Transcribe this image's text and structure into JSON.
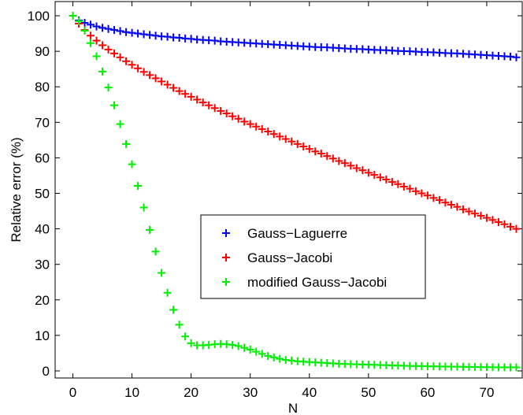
{
  "chart_data": {
    "type": "scatter",
    "title": "",
    "xlabel": "N",
    "ylabel": "Relative error (%)",
    "xlim": [
      -3,
      76
    ],
    "ylim": [
      -2,
      104
    ],
    "xticks": [
      0,
      10,
      20,
      30,
      40,
      50,
      60,
      70
    ],
    "yticks": [
      0,
      10,
      20,
      30,
      40,
      50,
      60,
      70,
      80,
      90,
      100
    ],
    "marker": "plus",
    "grid": false,
    "legend_position": "center-right",
    "series": [
      {
        "name": "Gauss−Laguerre",
        "color": "#0000ff",
        "x": [
          0,
          1,
          2,
          3,
          4,
          5,
          6,
          7,
          8,
          9,
          10,
          11,
          12,
          13,
          14,
          15,
          16,
          17,
          18,
          19,
          20,
          21,
          22,
          23,
          24,
          25,
          26,
          27,
          28,
          29,
          30,
          31,
          32,
          33,
          34,
          35,
          36,
          37,
          38,
          39,
          40,
          41,
          42,
          43,
          44,
          45,
          46,
          47,
          48,
          49,
          50,
          51,
          52,
          53,
          54,
          55,
          56,
          57,
          58,
          59,
          60,
          61,
          62,
          63,
          64,
          65,
          66,
          67,
          68,
          69,
          70,
          71,
          72,
          73,
          74,
          75
        ],
        "y": [
          100.0,
          98.7,
          98.0,
          97.5,
          97.0,
          96.6,
          96.3,
          96.0,
          95.7,
          95.4,
          95.2,
          95.0,
          94.8,
          94.6,
          94.4,
          94.2,
          94.1,
          93.9,
          93.8,
          93.6,
          93.5,
          93.3,
          93.2,
          93.1,
          93.0,
          92.8,
          92.7,
          92.6,
          92.5,
          92.4,
          92.3,
          92.2,
          92.1,
          92.0,
          91.9,
          91.8,
          91.7,
          91.6,
          91.5,
          91.4,
          91.3,
          91.2,
          91.15,
          91.1,
          91.0,
          90.9,
          90.8,
          90.7,
          90.65,
          90.6,
          90.5,
          90.4,
          90.35,
          90.3,
          90.2,
          90.1,
          90.05,
          90.0,
          89.9,
          89.8,
          89.75,
          89.7,
          89.6,
          89.5,
          89.45,
          89.4,
          89.3,
          89.2,
          89.1,
          89.0,
          88.9,
          88.8,
          88.7,
          88.6,
          88.5,
          88.3
        ]
      },
      {
        "name": "Gauss−Jacobi",
        "color": "#ff0000",
        "x": [
          0,
          1,
          2,
          3,
          4,
          5,
          6,
          7,
          8,
          9,
          10,
          11,
          12,
          13,
          14,
          15,
          16,
          17,
          18,
          19,
          20,
          21,
          22,
          23,
          24,
          25,
          26,
          27,
          28,
          29,
          30,
          31,
          32,
          33,
          34,
          35,
          36,
          37,
          38,
          39,
          40,
          41,
          42,
          43,
          44,
          45,
          46,
          47,
          48,
          49,
          50,
          51,
          52,
          53,
          54,
          55,
          56,
          57,
          58,
          59,
          60,
          61,
          62,
          63,
          64,
          65,
          66,
          67,
          68,
          69,
          70,
          71,
          72,
          73,
          74,
          75
        ],
        "y": [
          100.0,
          97.8,
          96.0,
          94.4,
          93.0,
          91.7,
          90.5,
          89.4,
          88.3,
          87.2,
          86.2,
          85.2,
          84.2,
          83.3,
          82.4,
          81.5,
          80.6,
          79.7,
          78.8,
          78.0,
          77.2,
          76.4,
          75.6,
          74.8,
          74.0,
          73.2,
          72.5,
          71.7,
          71.0,
          70.2,
          69.5,
          68.8,
          68.1,
          67.4,
          66.7,
          66.0,
          65.3,
          64.6,
          63.9,
          63.2,
          62.5,
          61.8,
          61.2,
          60.5,
          59.8,
          59.1,
          58.5,
          57.8,
          57.1,
          56.5,
          55.8,
          55.2,
          54.5,
          53.9,
          53.2,
          52.6,
          51.9,
          51.3,
          50.6,
          50.0,
          49.4,
          48.7,
          48.1,
          47.4,
          46.8,
          46.2,
          45.5,
          44.9,
          44.3,
          43.7,
          43.1,
          42.5,
          41.9,
          41.3,
          40.6,
          40.0
        ]
      },
      {
        "name": "modified Gauss−Jacobi",
        "color": "#00ee00",
        "x": [
          0,
          1,
          2,
          3,
          4,
          5,
          6,
          7,
          8,
          9,
          10,
          11,
          12,
          13,
          14,
          15,
          16,
          17,
          18,
          19,
          20,
          21,
          22,
          23,
          24,
          25,
          26,
          27,
          28,
          29,
          30,
          31,
          32,
          33,
          34,
          35,
          36,
          37,
          38,
          39,
          40,
          41,
          42,
          43,
          44,
          45,
          46,
          47,
          48,
          49,
          50,
          51,
          52,
          53,
          54,
          55,
          56,
          57,
          58,
          59,
          60,
          61,
          62,
          63,
          64,
          65,
          66,
          67,
          68,
          69,
          70,
          71,
          72,
          73,
          74,
          75
        ],
        "y": [
          100.0,
          98.5,
          95.8,
          92.3,
          88.6,
          84.3,
          79.8,
          74.8,
          69.5,
          63.9,
          58.2,
          52.1,
          46.0,
          39.7,
          33.6,
          27.6,
          22.0,
          17.2,
          13.0,
          9.7,
          7.8,
          7.2,
          7.2,
          7.3,
          7.5,
          7.6,
          7.5,
          7.3,
          7.0,
          6.5,
          6.0,
          5.4,
          4.8,
          4.2,
          3.8,
          3.4,
          3.1,
          2.9,
          2.7,
          2.6,
          2.5,
          2.4,
          2.3,
          2.2,
          2.1,
          2.0,
          1.95,
          1.9,
          1.85,
          1.8,
          1.75,
          1.7,
          1.65,
          1.6,
          1.55,
          1.5,
          1.45,
          1.4,
          1.38,
          1.35,
          1.3,
          1.28,
          1.25,
          1.22,
          1.2,
          1.18,
          1.15,
          1.12,
          1.1,
          1.08,
          1.05,
          1.03,
          1.0,
          1.0,
          1.0,
          1.0
        ]
      }
    ]
  }
}
